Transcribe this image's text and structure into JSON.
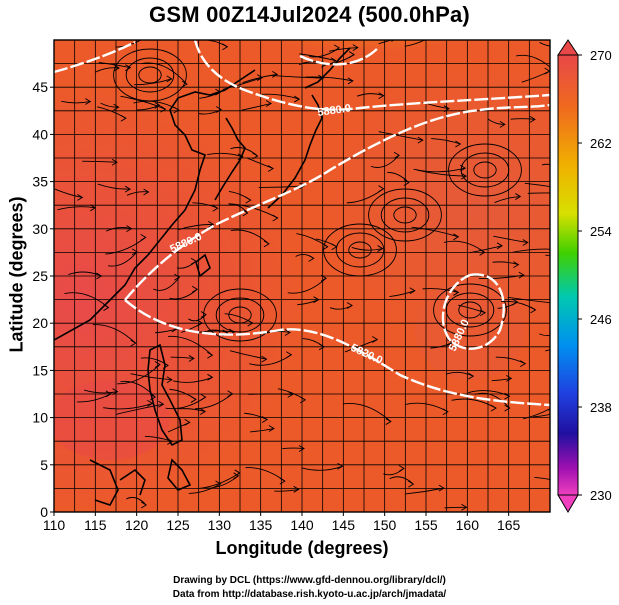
{
  "title": "GSM 00Z14Jul2024 (500.0hPa)",
  "xaxis": {
    "label": "Longitude (degrees)",
    "ticks": [
      "110",
      "115",
      "120",
      "125",
      "130",
      "135",
      "140",
      "145",
      "150",
      "155",
      "160",
      "165"
    ],
    "range": [
      110,
      170
    ]
  },
  "yaxis": {
    "label": "Latitude  (degrees)",
    "ticks": [
      "0",
      "5",
      "10",
      "15",
      "20",
      "25",
      "30",
      "35",
      "40",
      "45"
    ],
    "range": [
      0,
      50
    ]
  },
  "colorbar": {
    "ticks": [
      "270",
      "262",
      "254",
      "246",
      "238",
      "230"
    ],
    "range": [
      230,
      270
    ],
    "unit_hint": "temperature K"
  },
  "contours": [
    {
      "label": "5880.0"
    },
    {
      "label": "5880.0"
    },
    {
      "label": "5820.0"
    },
    {
      "label": "5880.0"
    }
  ],
  "credits": {
    "line1": "Drawing by DCL (https://www.gfd-dennou.org/library/dcl/)",
    "line2": "Data from http://database.rish.kyoto-u.ac.jp/arch/jmadata/"
  }
}
